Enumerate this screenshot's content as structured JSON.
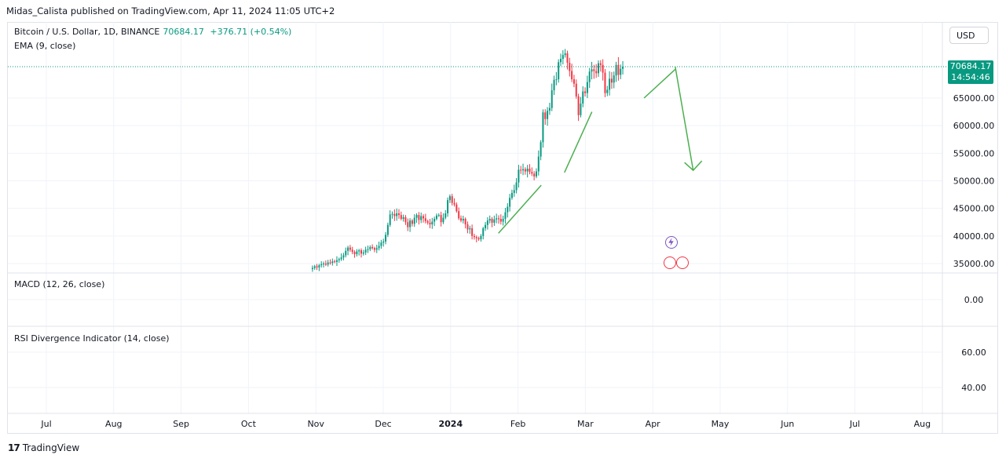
{
  "header": {
    "published": "Midas_Calista published on TradingView.com, Apr 11, 2024 11:05 UTC+2"
  },
  "legend": {
    "symbol": "Bitcoin / U.S. Dollar, 1D, BINANCE",
    "last": "70684.17",
    "change": "+376.71 (+0.54%)",
    "ema": "EMA (9, close)"
  },
  "currency": "USD",
  "price_tag": {
    "price": "70684.17",
    "countdown": "14:54:46"
  },
  "panes": {
    "macd": "MACD (12, 26, close)",
    "rsi": "RSI Divergence Indicator (14, close)"
  },
  "footer": {
    "brand": "TradingView"
  },
  "colors": {
    "up": "#089981",
    "down": "#f23645",
    "arrow": "#4caf50",
    "grid": "#f0f3fa"
  },
  "chart_data": {
    "type": "candlestick",
    "price_axis": {
      "ticks": [
        "35000.00",
        "40000.00",
        "45000.00",
        "50000.00",
        "55000.00",
        "60000.00",
        "65000.00"
      ],
      "range": [
        33000,
        77000
      ]
    },
    "macd_axis": {
      "ticks": [
        "0.00"
      ]
    },
    "rsi_axis": {
      "ticks": [
        "60.00",
        "40.00"
      ]
    },
    "time_axis": {
      "ticks": [
        "Jul",
        "Aug",
        "Sep",
        "Oct",
        "Nov",
        "Dec",
        "2024",
        "Feb",
        "Mar",
        "Apr",
        "May",
        "Jun",
        "Jul",
        "Aug"
      ],
      "bold_tick": "2024"
    },
    "series": [
      {
        "name": "BTC",
        "month_index_start": 3.95,
        "closes": [
          34200,
          34500,
          34300,
          34700,
          34900,
          35000,
          34800,
          35200,
          35100,
          35400,
          35300,
          35600,
          35800,
          36100,
          36500,
          37300,
          37900,
          37500,
          37100,
          36700,
          37200,
          37400,
          36800,
          37000,
          37500,
          37600,
          38000,
          37800,
          37500,
          37800,
          38200,
          38800,
          39000,
          40200,
          42000,
          43900,
          44000,
          43600,
          44100,
          43800,
          43100,
          43400,
          42500,
          41600,
          42800,
          42200,
          43300,
          43800,
          42900,
          43600,
          43200,
          42700,
          42400,
          42100,
          42600,
          43100,
          43700,
          43800,
          42500,
          43300,
          44100,
          46500,
          47200,
          46000,
          45700,
          44500,
          43200,
          42800,
          43100,
          42100,
          41200,
          41400,
          40000,
          39800,
          39600,
          39400,
          40000,
          41400,
          42000,
          42800,
          43100,
          42400,
          43000,
          43200,
          43100,
          42600,
          43100,
          44300,
          45300,
          46900,
          47800,
          48300,
          49700,
          52000,
          51900,
          52100,
          51700,
          52200,
          51600,
          51300,
          50800,
          51700,
          54400,
          57000,
          62400,
          61200,
          62700,
          63200,
          66400,
          68300,
          68400,
          71500,
          72100,
          72800,
          73100,
          71400,
          69900,
          68400,
          67600,
          65300,
          61900,
          64000,
          66200,
          65900,
          67900,
          69800,
          70200,
          69900,
          69500,
          71300,
          71000,
          69600,
          65900,
          66500,
          68500,
          67800,
          69100,
          71000,
          69200,
          70300,
          70684
        ]
      }
    ],
    "arrows": [
      {
        "label": "up-trend",
        "points": [
          [
            "2024-01-23",
            40500
          ],
          [
            "2024-02-11",
            49200
          ]
        ]
      },
      {
        "label": "up-trend",
        "points": [
          [
            "2024-02-21",
            51500
          ],
          [
            "2024-03-04",
            62500
          ]
        ]
      },
      {
        "label": "up-trend",
        "points": [
          [
            "2024-03-28",
            65000
          ],
          [
            "2024-04-11",
            70200
          ]
        ]
      },
      {
        "label": "projected-drop",
        "points": [
          [
            "2024-04-11",
            70684
          ],
          [
            "2024-04-19",
            51900
          ]
        ]
      }
    ],
    "last_price": 70684.17
  }
}
